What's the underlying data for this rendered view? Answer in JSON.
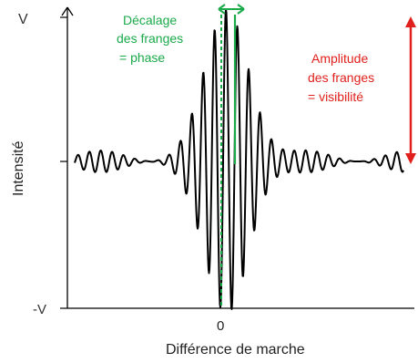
{
  "diagram": {
    "axes": {
      "ytick_top": "V",
      "ytick_bottom": "-V",
      "xtick_zero": "0",
      "xlabel": "Différence de marche",
      "ylabel": "Intensité"
    },
    "annotations": {
      "phase": [
        "Décalage",
        "des franges",
        "= phase"
      ],
      "visibility": [
        "Amplitude",
        "des franges",
        "= visibilité"
      ]
    },
    "colors": {
      "signal": "#000000",
      "phase": "#1aaa4a",
      "visibility": "#e0201c",
      "axis": "#000000"
    }
  }
}
